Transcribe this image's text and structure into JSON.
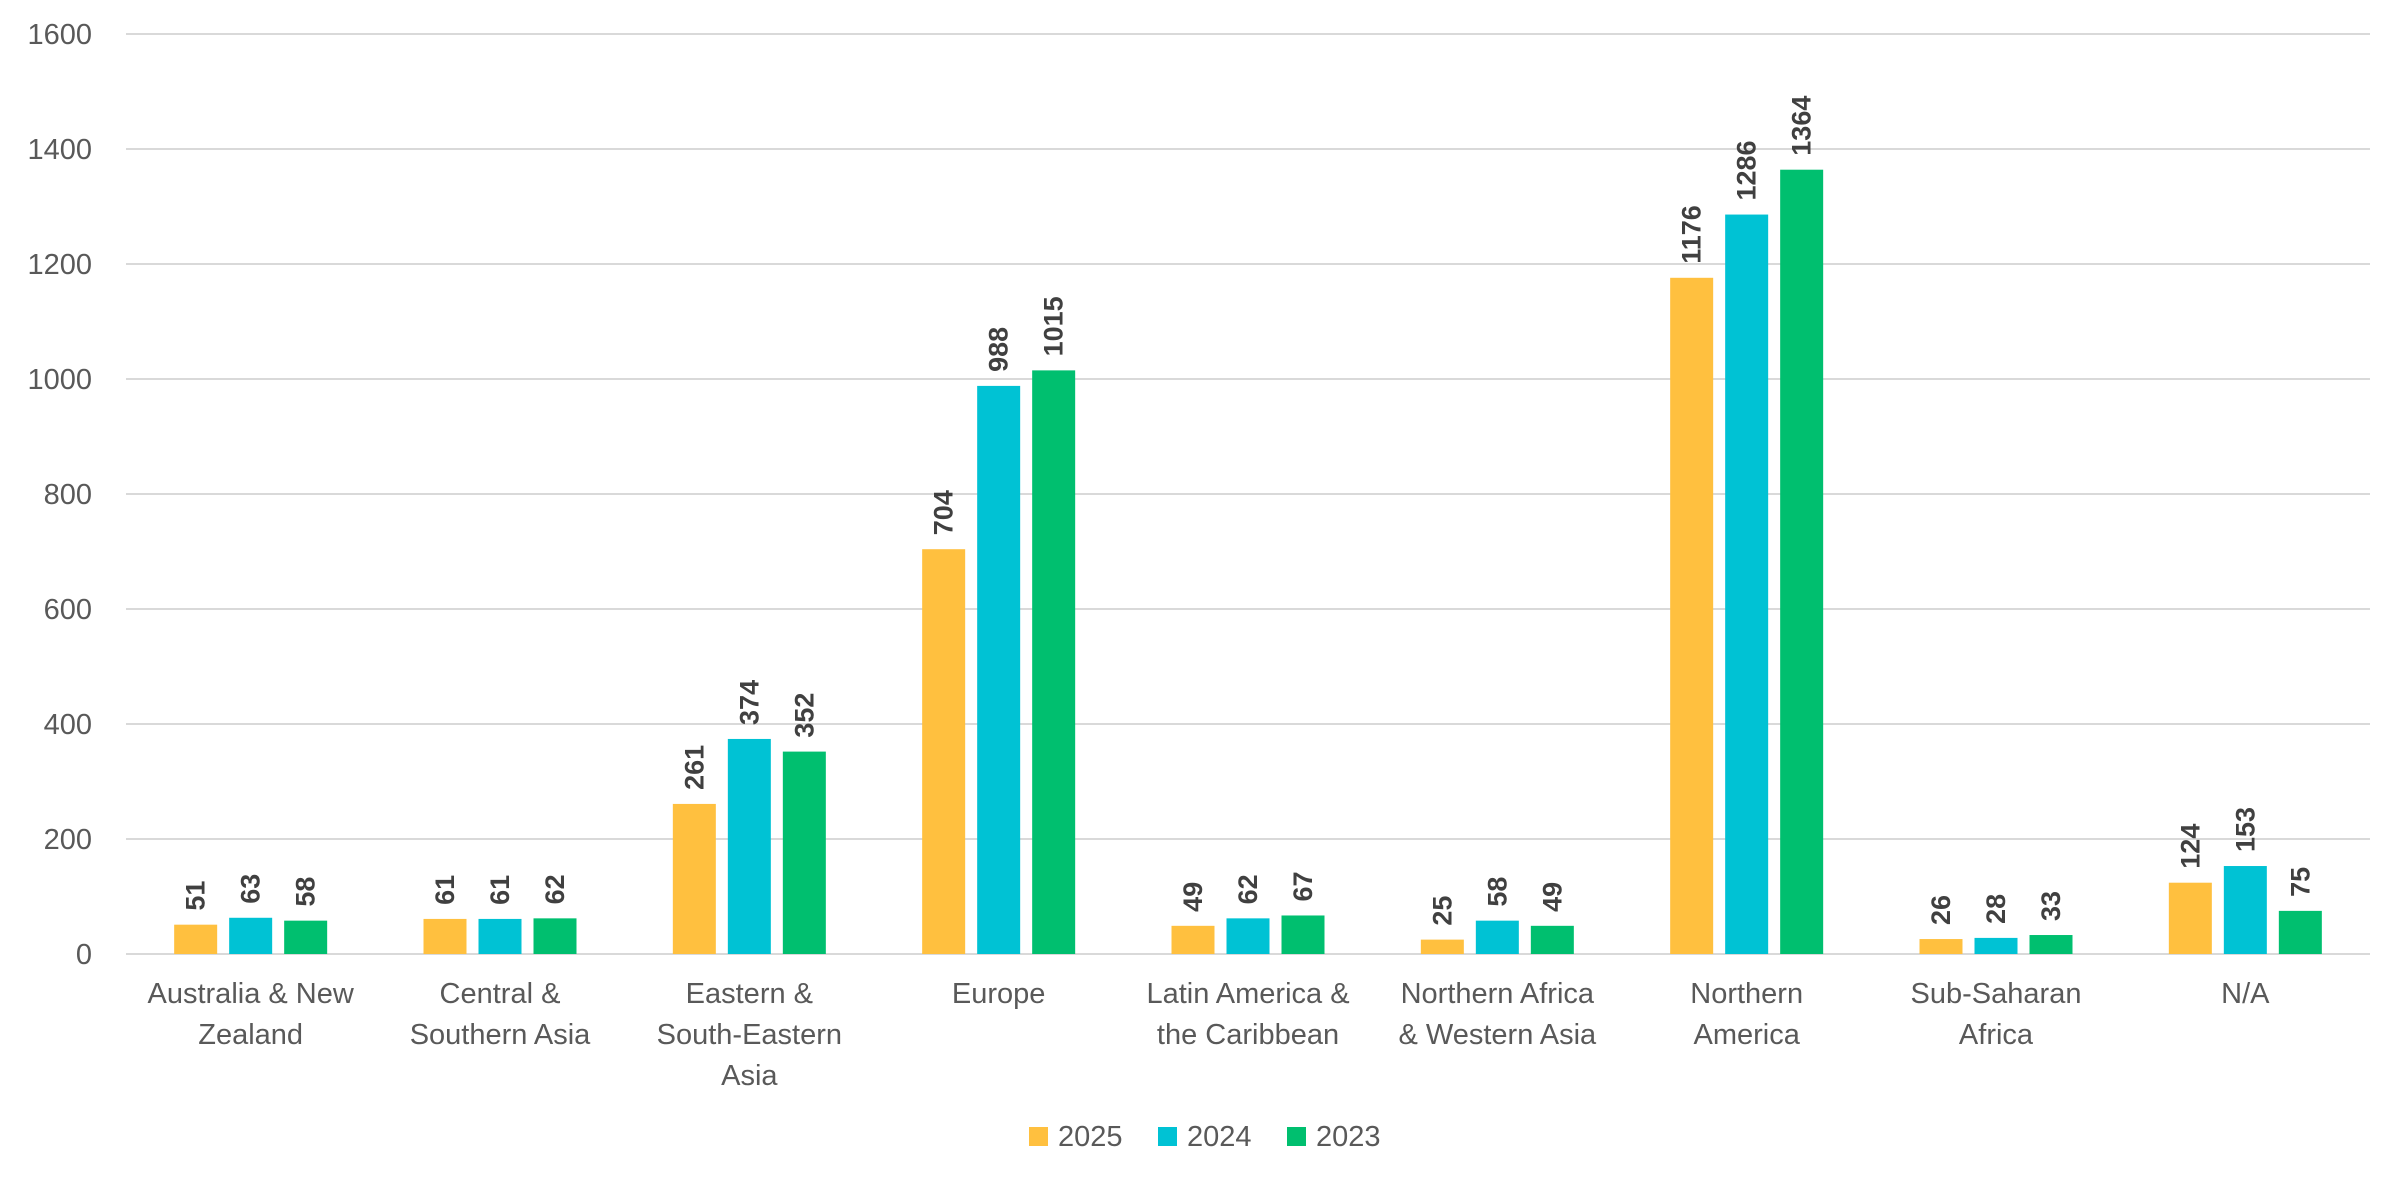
{
  "chart_data": {
    "type": "bar",
    "title": "",
    "xlabel": "",
    "ylabel": "",
    "ylim": [
      0,
      1600
    ],
    "yticks": [
      0,
      200,
      400,
      600,
      800,
      1000,
      1200,
      1400,
      1600
    ],
    "grid": true,
    "legend_position": "bottom",
    "data_labels": true,
    "categories": [
      [
        "Australia & New",
        "Zealand"
      ],
      [
        "Central &",
        "Southern Asia"
      ],
      [
        "Eastern &",
        "South-Eastern",
        "Asia"
      ],
      [
        "Europe"
      ],
      [
        "Latin America &",
        "the Caribbean"
      ],
      [
        "Northern Africa",
        "& Western Asia"
      ],
      [
        "Northern",
        "America"
      ],
      [
        "Sub-Saharan",
        "Africa"
      ],
      [
        "N/A"
      ]
    ],
    "series": [
      {
        "name": "2025",
        "color": "#FFC03F",
        "values": [
          51,
          61,
          261,
          704,
          49,
          25,
          1176,
          26,
          124
        ]
      },
      {
        "name": "2024",
        "color": "#00C2D4",
        "values": [
          63,
          61,
          374,
          988,
          62,
          58,
          1286,
          28,
          153
        ]
      },
      {
        "name": "2023",
        "color": "#00BF6F",
        "values": [
          58,
          62,
          352,
          1015,
          67,
          49,
          1364,
          33,
          75
        ]
      }
    ]
  }
}
